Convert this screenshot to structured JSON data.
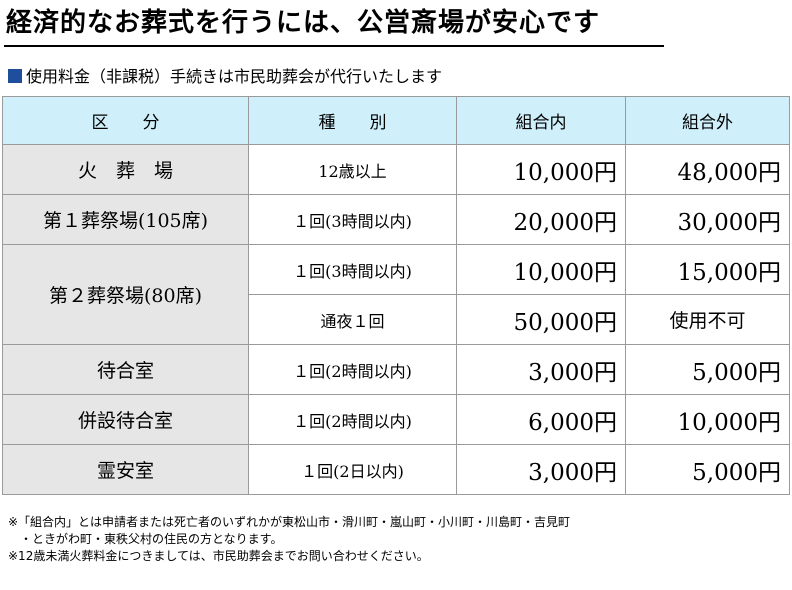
{
  "title": "経済的なお葬式を行うには、公営斎場が安心です",
  "subtitle": "使用料金（非課税）手続きは市民助葬会が代行いたします",
  "headers": [
    "区　　分",
    "種　　別",
    "組合内",
    "組合外"
  ],
  "rows": [
    {
      "facility": "火　葬　場",
      "kind": "12歳以上",
      "inside": "10,000円",
      "outside": "48,000円"
    },
    {
      "facility": "第１葬祭場(105席)",
      "kind": "１回(3時間以内)",
      "inside": "20,000円",
      "outside": "30,000円"
    },
    {
      "facility": "第２葬祭場(80席)",
      "kind": "１回(3時間以内)",
      "inside": "10,000円",
      "outside": "15,000円"
    },
    {
      "kind": "通夜１回",
      "inside": "50,000円",
      "outside": "使用不可"
    },
    {
      "facility": "待合室",
      "kind": "１回(2時間以内)",
      "inside": "3,000円",
      "outside": "5,000円"
    },
    {
      "facility": "併設待合室",
      "kind": "１回(2時間以内)",
      "inside": "6,000円",
      "outside": "10,000円"
    },
    {
      "facility": "霊安室",
      "kind": "１回(2日以内)",
      "inside": "3,000円",
      "outside": "5,000円"
    }
  ],
  "notes": [
    "※「組合内」とは申請者または死亡者のいずれかが東松山市・滑川町・嵐山町・小川町・川島町・吉見町",
    "　・ときがわ町・東秩父村の住民の方となります。",
    "※12歳未満火葬料金につきましては、市民助葬会までお問い合わせください。"
  ],
  "colors": {
    "header_bg": "#cfeffa",
    "label_bg": "#e6e6e6",
    "bullet": "#1f4e9c"
  }
}
